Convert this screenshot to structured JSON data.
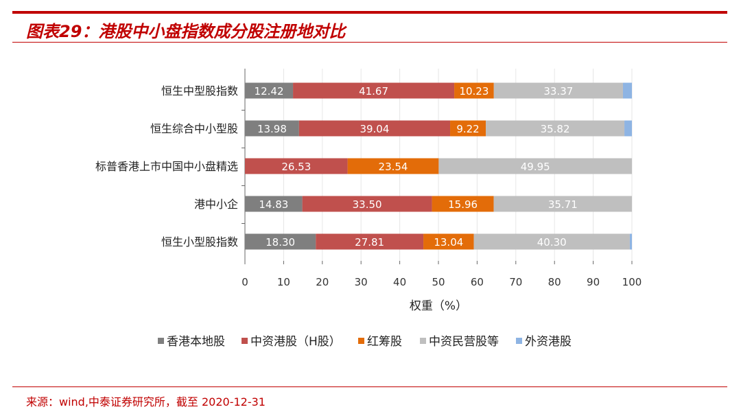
{
  "header": {
    "title": "图表29：港股中小盘指数成分股注册地对比"
  },
  "footer": {
    "source": "来源：wind,中泰证券研究所，截至 2020-12-31"
  },
  "chart_data": {
    "type": "bar",
    "orientation": "horizontal",
    "stacked": true,
    "categories": [
      "恒生中型股指数",
      "恒生综合中小型股",
      "标普香港上市中国中小盘精选",
      "港中小企",
      "恒生小型股指数"
    ],
    "series": [
      {
        "name": "香港本地股",
        "color": "#7f7f7f",
        "values": [
          12.42,
          13.98,
          0,
          14.83,
          18.3
        ],
        "labels": [
          "12.42",
          "13.98",
          "",
          "14.83",
          "18.30"
        ]
      },
      {
        "name": "中资港股（H股）",
        "color": "#c0504d",
        "values": [
          41.67,
          39.04,
          26.53,
          33.5,
          27.81
        ],
        "labels": [
          "41.67",
          "39.04",
          "26.53",
          "33.50",
          "27.81"
        ]
      },
      {
        "name": "红筹股",
        "color": "#e36c09",
        "values": [
          10.23,
          9.22,
          23.54,
          15.96,
          13.04
        ],
        "labels": [
          "10.23",
          "9.22",
          "23.54",
          "15.96",
          "13.04"
        ]
      },
      {
        "name": "中资民营股等",
        "color": "#bfbfbf",
        "values": [
          33.37,
          35.82,
          49.95,
          35.71,
          40.3
        ],
        "labels": [
          "33.37",
          "35.82",
          "49.95",
          "35.71",
          "40.30"
        ]
      },
      {
        "name": "外资港股",
        "color": "#8eb4e3",
        "values": [
          2.31,
          1.94,
          0,
          0,
          0.55
        ],
        "labels": [
          "",
          "",
          "",
          "",
          ""
        ]
      }
    ],
    "xlabel": "权重（%）",
    "xlim": [
      0,
      100
    ],
    "xticks": [
      "0",
      "10",
      "20",
      "30",
      "40",
      "50",
      "60",
      "70",
      "80",
      "90",
      "100"
    ],
    "grid": true,
    "legend": "bottom"
  }
}
